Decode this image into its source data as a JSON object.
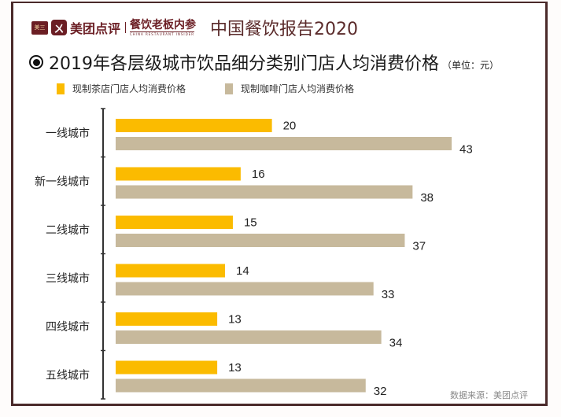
{
  "header": {
    "logo_badge": "美三",
    "logo_mark": "ㄨ",
    "brand": "美团点评",
    "partner_cn": "餐饮老板内参",
    "partner_en": "CHINA RESTAURANT INSIDER",
    "report_title": "中国餐饮报告2020"
  },
  "colors": {
    "tea": "#fbbb00",
    "coffee": "#c7b99c",
    "frame": "#4a2a2a",
    "brand": "#6b1e24"
  },
  "source": "数据来源：美团点评",
  "chart_data": {
    "type": "bar",
    "orientation": "horizontal",
    "title": "2019年各层级城市饮品细分类别门店人均消费价格",
    "unit_label": "（单位：元）",
    "categories": [
      "一线城市",
      "新一线城市",
      "二线城市",
      "三线城市",
      "四线城市",
      "五线城市"
    ],
    "series": [
      {
        "name": "现制茶店门店人均消费价格",
        "color": "#fbbb00",
        "values": [
          20,
          16,
          15,
          14,
          13,
          13
        ]
      },
      {
        "name": "现制咖啡门店人均消费价格",
        "color": "#c7b99c",
        "values": [
          43,
          38,
          37,
          33,
          34,
          32
        ]
      }
    ],
    "xlim": [
      0,
      45
    ],
    "grid": false,
    "data_labels": true,
    "legend_position": "top-left"
  }
}
